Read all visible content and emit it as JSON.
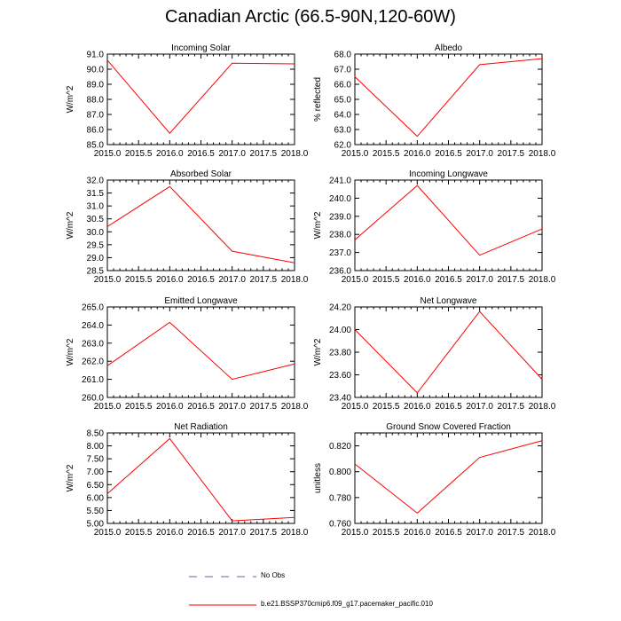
{
  "figure_title": "Canadian Arctic (66.5-90N,120-60W)",
  "colors": {
    "model_line": "#ff0000",
    "obs_line": "#6f5aa8",
    "axis": "#000000"
  },
  "legend": {
    "obs_label": "No Obs",
    "model_label": "b.e21.BSSP370cmip6.f09_g17.pacemaker_pacific.010"
  },
  "chart_data": [
    {
      "type": "line",
      "title": "Incoming Solar",
      "ylabel": "W/m^2",
      "x": [
        2015,
        2016,
        2017,
        2018
      ],
      "x_ticks": [
        "2015.0",
        "2015.5",
        "2016.0",
        "2016.5",
        "2017.0",
        "2017.5",
        "2018.0"
      ],
      "ylim": [
        85,
        91
      ],
      "y_ticks": [
        "85.0",
        "86.0",
        "87.0",
        "88.0",
        "89.0",
        "90.0",
        "91.0"
      ],
      "series": [
        {
          "values": [
            90.6,
            85.75,
            90.4,
            90.35
          ]
        }
      ]
    },
    {
      "type": "line",
      "title": "Albedo",
      "ylabel": "% reflected",
      "x": [
        2015,
        2016,
        2017,
        2018
      ],
      "x_ticks": [
        "2015.0",
        "2015.5",
        "2016.0",
        "2016.5",
        "2017.0",
        "2017.5",
        "2018.0"
      ],
      "ylim": [
        62,
        68
      ],
      "y_ticks": [
        "62.0",
        "63.0",
        "64.0",
        "65.0",
        "66.0",
        "67.0",
        "68.0"
      ],
      "series": [
        {
          "values": [
            66.5,
            62.55,
            67.3,
            67.7
          ]
        }
      ]
    },
    {
      "type": "line",
      "title": "Absorbed Solar",
      "ylabel": "W/m^2",
      "x": [
        2015,
        2016,
        2017,
        2018
      ],
      "x_ticks": [
        "2015.0",
        "2015.5",
        "2016.0",
        "2016.5",
        "2017.0",
        "2017.5",
        "2018.0"
      ],
      "ylim": [
        28.5,
        32
      ],
      "y_ticks": [
        "28.5",
        "29.0",
        "29.5",
        "30.0",
        "30.5",
        "31.0",
        "31.5",
        "32.0"
      ],
      "series": [
        {
          "values": [
            30.2,
            31.75,
            29.25,
            28.8
          ]
        }
      ]
    },
    {
      "type": "line",
      "title": "Incoming Longwave",
      "ylabel": "W/m^2",
      "x": [
        2015,
        2016,
        2017,
        2018
      ],
      "x_ticks": [
        "2015.0",
        "2015.5",
        "2016.0",
        "2016.5",
        "2017.0",
        "2017.5",
        "2018.0"
      ],
      "ylim": [
        236,
        241
      ],
      "y_ticks": [
        "236.0",
        "237.0",
        "238.0",
        "239.0",
        "240.0",
        "241.0"
      ],
      "series": [
        {
          "values": [
            237.7,
            240.7,
            236.85,
            238.3
          ]
        }
      ]
    },
    {
      "type": "line",
      "title": "Emitted Longwave",
      "ylabel": "W/m^2",
      "x": [
        2015,
        2016,
        2017,
        2018
      ],
      "x_ticks": [
        "2015.0",
        "2015.5",
        "2016.0",
        "2016.5",
        "2017.0",
        "2017.5",
        "2018.0"
      ],
      "ylim": [
        260,
        265
      ],
      "y_ticks": [
        "260.0",
        "261.0",
        "262.0",
        "263.0",
        "264.0",
        "265.0"
      ],
      "series": [
        {
          "values": [
            261.75,
            264.15,
            261.0,
            261.85
          ]
        }
      ]
    },
    {
      "type": "line",
      "title": "Net Longwave",
      "ylabel": "W/m^2",
      "x": [
        2015,
        2016,
        2017,
        2018
      ],
      "x_ticks": [
        "2015.0",
        "2015.5",
        "2016.0",
        "2016.5",
        "2017.0",
        "2017.5",
        "2018.0"
      ],
      "ylim": [
        23.4,
        24.2
      ],
      "y_ticks": [
        "23.40",
        "23.60",
        "23.80",
        "24.00",
        "24.20"
      ],
      "series": [
        {
          "values": [
            24.0,
            23.44,
            24.16,
            23.56
          ]
        }
      ]
    },
    {
      "type": "line",
      "title": "Net Radiation",
      "ylabel": "W/m^2",
      "x": [
        2015,
        2016,
        2017,
        2018
      ],
      "x_ticks": [
        "2015.0",
        "2015.5",
        "2016.0",
        "2016.5",
        "2017.0",
        "2017.5",
        "2018.0"
      ],
      "ylim": [
        5,
        8.5
      ],
      "y_ticks": [
        "5.00",
        "5.50",
        "6.00",
        "6.50",
        "7.00",
        "7.50",
        "8.00",
        "8.50"
      ],
      "series": [
        {
          "values": [
            6.15,
            8.28,
            5.1,
            5.23
          ]
        }
      ]
    },
    {
      "type": "line",
      "title": "Ground Snow Covered Fraction",
      "ylabel": "unitless",
      "x": [
        2015,
        2016,
        2017,
        2018
      ],
      "x_ticks": [
        "2015.0",
        "2015.5",
        "2016.0",
        "2016.5",
        "2017.0",
        "2017.5",
        "2018.0"
      ],
      "ylim": [
        0.76,
        0.83
      ],
      "y_ticks": [
        "0.760",
        "0.780",
        "0.800",
        "0.820"
      ],
      "series": [
        {
          "values": [
            0.806,
            0.768,
            0.811,
            0.824
          ]
        }
      ]
    }
  ]
}
